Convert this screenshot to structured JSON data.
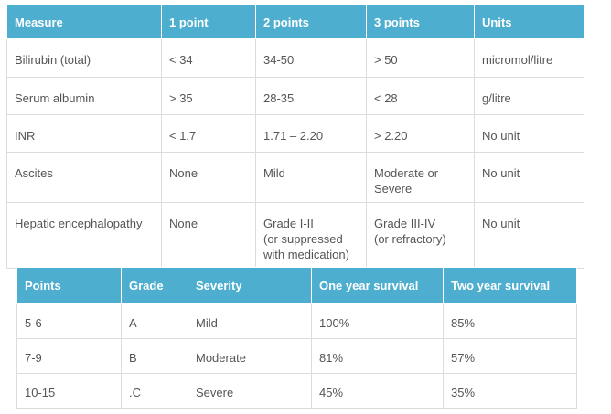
{
  "scoring_table": {
    "headers": [
      "Measure",
      "1 point",
      "2 points",
      "3 points",
      "Units"
    ],
    "rows": [
      [
        "Bilirubin (total)",
        "< 34",
        "34-50",
        "> 50",
        "micromol/litre"
      ],
      [
        "Serum albumin",
        "> 35",
        "28-35",
        "< 28",
        "g/litre"
      ],
      [
        "INR",
        "< 1.7",
        "1.71 – 2.20",
        "> 2.20",
        "No unit"
      ],
      [
        "Ascites",
        "None",
        "Mild",
        "Moderate or Severe",
        "No unit"
      ],
      [
        "Hepatic encephalopathy",
        "None",
        "Grade I-II\n(or suppressed with medication)",
        "Grade III-IV\n(or refractory)",
        "No unit"
      ]
    ]
  },
  "classification_table": {
    "headers": [
      "Points",
      "Grade",
      "Severity",
      "One year survival",
      "Two year survival"
    ],
    "rows": [
      [
        "5-6",
        "A",
        "Mild",
        "100%",
        "85%"
      ],
      [
        "7-9",
        "B",
        "Moderate",
        "81%",
        "57%"
      ],
      [
        "10-15",
        ".C",
        "Severe",
        "45%",
        "35%"
      ]
    ]
  }
}
